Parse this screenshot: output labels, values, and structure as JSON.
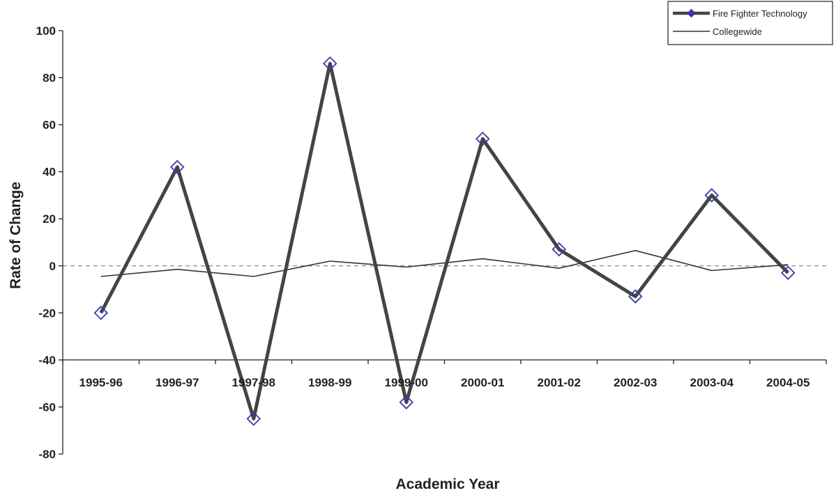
{
  "chart_data": {
    "type": "line",
    "title": "",
    "xlabel": "Academic Year",
    "ylabel": "Rate of Change",
    "categories": [
      "1995-96",
      "1996-97",
      "1997-98",
      "1998-99",
      "1999-00",
      "2000-01",
      "2001-02",
      "2002-03",
      "2003-04",
      "2004-05"
    ],
    "y_ticks": [
      "100",
      "80",
      "60",
      "40",
      "20",
      "0",
      "-20",
      "-40",
      "-60",
      "-80"
    ],
    "ylim": [
      -80,
      100
    ],
    "grid": false,
    "zero_reference_line": "dashed",
    "legend_position": "top-right",
    "series": [
      {
        "name": "Fire Fighter Technology",
        "values": [
          -20,
          42,
          -65,
          86,
          -58,
          54,
          7,
          -13,
          30,
          -3
        ],
        "color": "#444444",
        "marker": "diamond",
        "marker_color": "#3a3ab0",
        "line_style": "thick"
      },
      {
        "name": "Collegewide",
        "values": [
          -4.5,
          -1.5,
          -4.5,
          2,
          -0.5,
          3,
          -1,
          6.5,
          -2,
          0.5
        ],
        "color": "#333333",
        "marker": "none",
        "line_style": "thin"
      }
    ]
  }
}
